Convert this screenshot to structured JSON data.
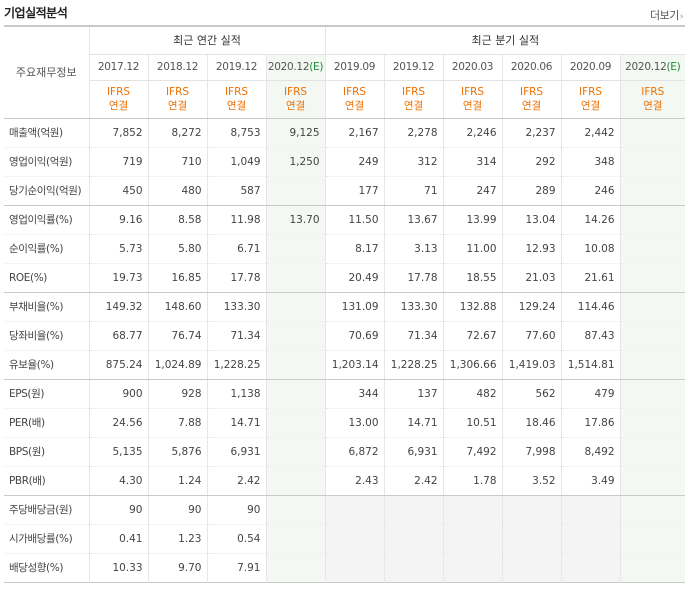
{
  "header": {
    "title": "기업실적분석",
    "more_label": "더보기"
  },
  "table": {
    "row_header_label": "주요재무정보",
    "annual_group_label": "최근 연간 실적",
    "quarter_group_label": "최근 분기 실적",
    "annual_periods": [
      "2017.12",
      "2018.12",
      "2019.12",
      "2020.12"
    ],
    "annual_estimate_marker": "(E)",
    "quarter_periods": [
      "2019.09",
      "2019.12",
      "2020.03",
      "2020.06",
      "2020.09",
      "2020.12"
    ],
    "quarter_estimate_marker": "(E)",
    "std_line1": "IFRS",
    "std_line2": "연결",
    "rows": [
      {
        "label": "매출액(억원)",
        "annual": [
          "7,852",
          "8,272",
          "8,753",
          "9,125"
        ],
        "quarter": [
          "2,167",
          "2,278",
          "2,246",
          "2,237",
          "2,442",
          ""
        ]
      },
      {
        "label": "영업이익(억원)",
        "annual": [
          "719",
          "710",
          "1,049",
          "1,250"
        ],
        "quarter": [
          "249",
          "312",
          "314",
          "292",
          "348",
          ""
        ]
      },
      {
        "label": "당기순이익(억원)",
        "annual": [
          "450",
          "480",
          "587",
          ""
        ],
        "quarter": [
          "177",
          "71",
          "247",
          "289",
          "246",
          ""
        ]
      },
      {
        "label": "영업이익률(%)",
        "annual": [
          "9.16",
          "8.58",
          "11.98",
          "13.70"
        ],
        "quarter": [
          "11.50",
          "13.67",
          "13.99",
          "13.04",
          "14.26",
          ""
        ]
      },
      {
        "label": "순이익률(%)",
        "annual": [
          "5.73",
          "5.80",
          "6.71",
          ""
        ],
        "quarter": [
          "8.17",
          "3.13",
          "11.00",
          "12.93",
          "10.08",
          ""
        ]
      },
      {
        "label": "ROE(%)",
        "annual": [
          "19.73",
          "16.85",
          "17.78",
          ""
        ],
        "quarter": [
          "20.49",
          "17.78",
          "18.55",
          "21.03",
          "21.61",
          ""
        ]
      },
      {
        "label": "부채비율(%)",
        "annual": [
          "149.32",
          "148.60",
          "133.30",
          ""
        ],
        "quarter": [
          "131.09",
          "133.30",
          "132.88",
          "129.24",
          "114.46",
          ""
        ]
      },
      {
        "label": "당좌비율(%)",
        "annual": [
          "68.77",
          "76.74",
          "71.34",
          ""
        ],
        "quarter": [
          "70.69",
          "71.34",
          "72.67",
          "77.60",
          "87.43",
          ""
        ]
      },
      {
        "label": "유보율(%)",
        "annual": [
          "875.24",
          "1,024.89",
          "1,228.25",
          ""
        ],
        "quarter": [
          "1,203.14",
          "1,228.25",
          "1,306.66",
          "1,419.03",
          "1,514.81",
          ""
        ]
      },
      {
        "label": "EPS(원)",
        "annual": [
          "900",
          "928",
          "1,138",
          ""
        ],
        "quarter": [
          "344",
          "137",
          "482",
          "562",
          "479",
          ""
        ]
      },
      {
        "label": "PER(배)",
        "annual": [
          "24.56",
          "7.88",
          "14.71",
          ""
        ],
        "quarter": [
          "13.00",
          "14.71",
          "10.51",
          "18.46",
          "17.86",
          ""
        ]
      },
      {
        "label": "BPS(원)",
        "annual": [
          "5,135",
          "5,876",
          "6,931",
          ""
        ],
        "quarter": [
          "6,872",
          "6,931",
          "7,492",
          "7,998",
          "8,492",
          ""
        ]
      },
      {
        "label": "PBR(배)",
        "annual": [
          "4.30",
          "1.24",
          "2.42",
          ""
        ],
        "quarter": [
          "2.43",
          "2.42",
          "1.78",
          "3.52",
          "3.49",
          ""
        ]
      },
      {
        "label": "주당배당금(원)",
        "annual": [
          "90",
          "90",
          "90",
          ""
        ],
        "quarter": [
          "",
          "",
          "",
          "",
          "",
          ""
        ]
      },
      {
        "label": "시가배당률(%)",
        "annual": [
          "0.41",
          "1.23",
          "0.54",
          ""
        ],
        "quarter": [
          "",
          "",
          "",
          "",
          "",
          ""
        ]
      },
      {
        "label": "배당성향(%)",
        "annual": [
          "10.33",
          "9.70",
          "7.91",
          ""
        ],
        "quarter": [
          "",
          "",
          "",
          "",
          "",
          ""
        ]
      }
    ]
  },
  "colors": {
    "ifrs_text": "#ef6f00",
    "estimate_marker": "#1d8a3a",
    "estimate_bg": "#f3f8f2"
  }
}
